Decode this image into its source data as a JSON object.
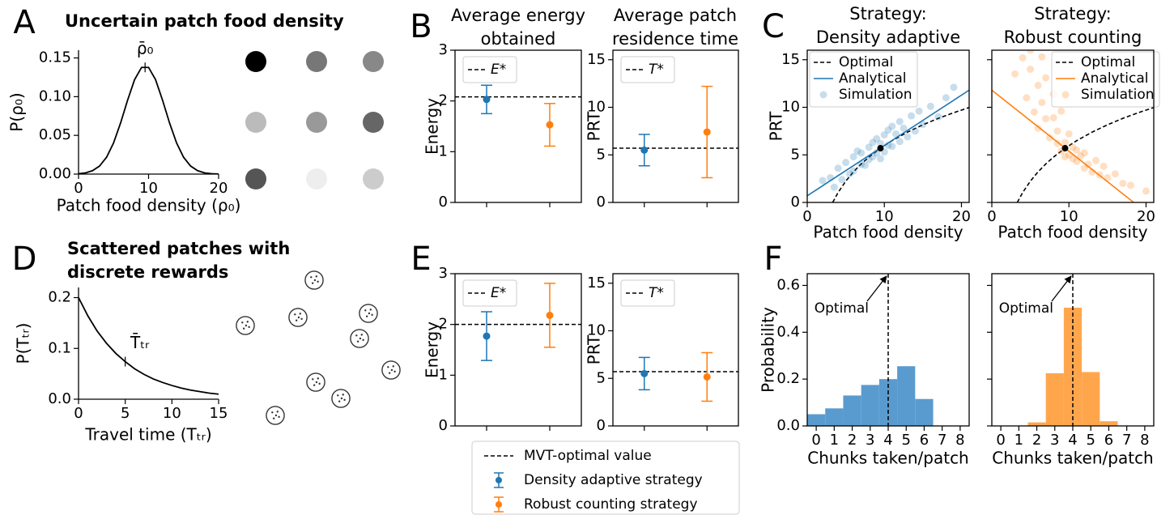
{
  "chart_data": [
    {
      "type": "line",
      "panel_label": "A",
      "title": "Uncertain patch food density",
      "x": [
        0,
        1,
        2,
        3,
        4,
        5,
        6,
        7,
        8,
        9,
        10,
        11,
        12,
        13,
        14,
        15,
        16,
        17,
        18,
        19,
        20
      ],
      "values": [
        0.0005,
        0.0016,
        0.0044,
        0.0104,
        0.0217,
        0.0402,
        0.0659,
        0.0953,
        0.1219,
        0.1378,
        0.1378,
        0.1219,
        0.0953,
        0.0659,
        0.0402,
        0.0217,
        0.0104,
        0.0044,
        0.0016,
        0.0005,
        0.0001
      ],
      "color": "#000000",
      "xlim": [
        0,
        20
      ],
      "ylim": [
        0,
        0.16
      ],
      "xticks": [
        0,
        10,
        20
      ],
      "yticks": [
        {
          "value": 0,
          "label": "0.00"
        },
        {
          "value": 0.05,
          "label": "0.05"
        },
        {
          "value": 0.1,
          "label": "0.10"
        },
        {
          "value": 0.15,
          "label": "0.15"
        }
      ],
      "xlabel": "Patch food density (ρ₀)",
      "ylabel": "P(ρ₀)",
      "annotation": {
        "text": "ρ̄₀",
        "x": 9.5
      }
    },
    {
      "type": "errorbar",
      "panel_label": "B",
      "title": [
        "Average energy",
        "obtained"
      ],
      "ylabel": "Energy",
      "categories": [
        null,
        null
      ],
      "values": [
        2.03,
        1.53
      ],
      "errors": [
        0.28,
        0.42
      ],
      "colors": [
        "#1f77b4",
        "#ff7f0e"
      ],
      "ylim": [
        0,
        3
      ],
      "yticks": [
        0,
        1,
        2,
        3
      ],
      "reference": {
        "label": "E*",
        "value": 2.08
      }
    },
    {
      "type": "errorbar",
      "title": [
        "Average patch",
        "residence time"
      ],
      "ylabel": "PRT",
      "categories": [
        null,
        null
      ],
      "values": [
        5.5,
        7.4
      ],
      "errors": [
        1.65,
        4.8
      ],
      "colors": [
        "#1f77b4",
        "#ff7f0e"
      ],
      "ylim": [
        0,
        16
      ],
      "yticks": [
        0,
        5,
        10,
        15
      ],
      "reference": {
        "label": "T*",
        "value": 5.7
      }
    },
    {
      "type": "scatter",
      "panel_label": "C",
      "title": [
        "Strategy:",
        "Density adaptive"
      ],
      "xlabel": "Patch food density",
      "ylabel": "PRT",
      "xlim": [
        0,
        21
      ],
      "ylim": [
        0,
        16
      ],
      "xticks": [
        0,
        10,
        20
      ],
      "yticks": [
        0,
        5,
        10,
        15
      ],
      "legend": "upper left",
      "series": [
        {
          "name": "Optimal",
          "color": "#000000",
          "style": "dashed",
          "x": [
            3.3,
            4,
            5,
            6,
            7,
            8,
            9.5,
            11,
            13,
            15,
            17,
            19,
            21
          ],
          "values": [
            0,
            1.04,
            2.24,
            3.22,
            4.05,
            4.77,
            5.7,
            6.49,
            7.39,
            8.16,
            8.84,
            9.43,
            9.98
          ]
        },
        {
          "name": "Analytical",
          "color": "#1f77b4",
          "style": "solid",
          "x": [
            0,
            21
          ],
          "values": [
            0.7,
            11.8
          ]
        },
        {
          "name": "Simulation",
          "color": "#1f77b4",
          "style": "points",
          "x": [
            3,
            4,
            4.5,
            5,
            5.5,
            6,
            6,
            6.5,
            7,
            7,
            7.5,
            8,
            8,
            8.5,
            8.5,
            9,
            9,
            9.5,
            9.5,
            10,
            10,
            10.5,
            10.5,
            11,
            11,
            11.5,
            12,
            12,
            12.5,
            13,
            13.5,
            14,
            14.5,
            15,
            16,
            17,
            18,
            2,
            3.5,
            19
          ],
          "values": [
            2.6,
            3.6,
            2.4,
            4.2,
            3.0,
            4.8,
            3.3,
            5.4,
            4.0,
            5.2,
            3.9,
            5.8,
            4.5,
            6.3,
            4.8,
            5.2,
            6.7,
            4.6,
            6.2,
            7.1,
            5.3,
            6.0,
            7.6,
            5.9,
            8.0,
            7.2,
            6.4,
            8.5,
            7.8,
            6.9,
            9.1,
            7.5,
            9.6,
            8.2,
            10.1,
            9.0,
            11.0,
            2.3,
            1.6,
            12.1
          ]
        }
      ],
      "optimum": {
        "x": 9.5,
        "y": 5.7
      }
    },
    {
      "type": "scatter",
      "title": [
        "Strategy:",
        "Robust counting"
      ],
      "xlabel": "Patch food density",
      "xlim": [
        0,
        21
      ],
      "ylim": [
        0,
        16
      ],
      "xticks": [
        0,
        10,
        20
      ],
      "yticks": [
        0,
        5,
        10,
        15
      ],
      "ytick_labels": false,
      "legend": "upper right",
      "series": [
        {
          "name": "Optimal",
          "color": "#000000",
          "style": "dashed",
          "x": [
            3.3,
            4,
            5,
            6,
            7,
            8,
            9.5,
            11,
            13,
            15,
            17,
            19,
            21
          ],
          "values": [
            0,
            1.04,
            2.24,
            3.22,
            4.05,
            4.77,
            5.7,
            6.49,
            7.39,
            8.16,
            8.84,
            9.43,
            9.98
          ]
        },
        {
          "name": "Analytical",
          "color": "#ff7f0e",
          "style": "solid",
          "x": [
            0,
            18.4
          ],
          "values": [
            11.8,
            0
          ]
        },
        {
          "name": "Simulation",
          "color": "#ff7f0e",
          "style": "points",
          "x": [
            3,
            4,
            4.5,
            5,
            5.5,
            6,
            6,
            6.5,
            7,
            7,
            7.5,
            8,
            8,
            8.5,
            8.5,
            9,
            9,
            9.5,
            9.5,
            10,
            10,
            10.5,
            10.5,
            11,
            11,
            11.5,
            12,
            12,
            12.5,
            13,
            13.5,
            14,
            14.5,
            15,
            16,
            17,
            18,
            5,
            6.5,
            20
          ],
          "values": [
            13.5,
            15.2,
            11.0,
            14.0,
            9.5,
            12.3,
            7.8,
            10.5,
            8.8,
            13.1,
            6.8,
            8.9,
            11.4,
            6.2,
            7.5,
            5.4,
            9.6,
            4.8,
            6.3,
            5.0,
            7.2,
            4.6,
            5.8,
            4.3,
            5.5,
            4.9,
            3.6,
            5.2,
            4.0,
            3.2,
            4.4,
            2.9,
            3.8,
            2.6,
            3.0,
            2.0,
            1.8,
            16.0,
            15.3,
            1.2
          ]
        }
      ],
      "optimum": {
        "x": 9.5,
        "y": 5.7
      }
    },
    {
      "type": "line",
      "panel_label": "D",
      "title": [
        "Scattered patches with",
        "discrete rewards"
      ],
      "x": [
        0,
        1,
        2,
        3,
        4,
        5,
        6,
        7,
        8,
        9,
        10,
        11,
        12,
        13,
        14,
        15
      ],
      "values": [
        0.2,
        0.164,
        0.134,
        0.11,
        0.09,
        0.074,
        0.06,
        0.049,
        0.04,
        0.033,
        0.027,
        0.022,
        0.018,
        0.015,
        0.012,
        0.01
      ],
      "color": "#000000",
      "xlim": [
        0,
        15
      ],
      "ylim": [
        0,
        0.22
      ],
      "xticks": [
        0,
        5,
        10,
        15
      ],
      "yticks": [
        {
          "value": 0,
          "label": "0.0"
        },
        {
          "value": 0.1,
          "label": "0.1"
        },
        {
          "value": 0.2,
          "label": "0.2"
        }
      ],
      "xlabel": "Travel time (Tₜᵣ)",
      "ylabel": "P(Tₜᵣ)",
      "annotation": {
        "text": "T̄ₜᵣ",
        "x": 5
      }
    },
    {
      "type": "errorbar",
      "panel_label": "E",
      "ylabel": "Energy",
      "categories": [
        null,
        null
      ],
      "values": [
        1.77,
        2.18
      ],
      "errors": [
        0.48,
        0.63
      ],
      "colors": [
        "#1f77b4",
        "#ff7f0e"
      ],
      "ylim": [
        0,
        3
      ],
      "yticks": [
        0,
        1,
        2,
        3
      ],
      "reference": {
        "label": "E*",
        "value": 2.0
      }
    },
    {
      "type": "errorbar",
      "ylabel": "PRT",
      "categories": [
        null,
        null
      ],
      "values": [
        5.5,
        5.15
      ],
      "errors": [
        1.7,
        2.55
      ],
      "colors": [
        "#1f77b4",
        "#ff7f0e"
      ],
      "ylim": [
        0,
        16
      ],
      "yticks": [
        0,
        5,
        10,
        15
      ],
      "reference": {
        "label": "T*",
        "value": 5.7
      }
    },
    {
      "type": "bar",
      "panel_label": "F",
      "xlabel": "Chunks taken/patch",
      "ylabel": "Probability",
      "categories": [
        "0",
        "1",
        "2",
        "3",
        "4",
        "5",
        "6",
        "7",
        "8"
      ],
      "values": [
        0.05,
        0.075,
        0.13,
        0.175,
        0.2,
        0.255,
        0.115,
        0,
        0
      ],
      "color": "#5a9bcf",
      "ylim": [
        0,
        0.65
      ],
      "yticks": [
        {
          "value": 0,
          "label": "0.0"
        },
        {
          "value": 0.2,
          "label": "0.2"
        },
        {
          "value": 0.4,
          "label": "0.4"
        },
        {
          "value": 0.6,
          "label": "0.6"
        }
      ],
      "reference": {
        "label": "Optimal",
        "value": 4
      }
    },
    {
      "type": "bar",
      "xlabel": "Chunks taken/patch",
      "categories": [
        "0",
        "1",
        "2",
        "3",
        "4",
        "5",
        "6",
        "7",
        "8"
      ],
      "values": [
        0,
        0,
        0.015,
        0.225,
        0.505,
        0.23,
        0.02,
        0,
        0
      ],
      "color": "#ffa64d",
      "ylim": [
        0,
        0.65
      ],
      "yticks": [
        0,
        0.2,
        0.4,
        0.6
      ],
      "ytick_labels": false,
      "reference": {
        "label": "Optimal",
        "value": 4
      }
    }
  ],
  "legend": {
    "entries": [
      {
        "label": "MVT-optimal value",
        "style": "dashed",
        "color": "#000000"
      },
      {
        "label": "Density adaptive strategy",
        "style": "errorbar",
        "color": "#1f77b4"
      },
      {
        "label": "Robust counting strategy",
        "style": "errorbar",
        "color": "#ff7f0e"
      }
    ]
  }
}
